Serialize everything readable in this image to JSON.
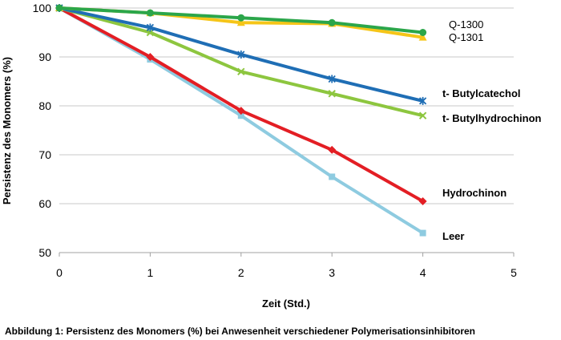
{
  "chart_data": {
    "type": "line",
    "xlabel": "Zeit (Std.)",
    "ylabel": "Persistenz des Monomers (%)",
    "caption": "Abbildung 1:  Persistenz des Monomers (%) bei Anwesenheit verschiedener Polymerisationsinhibitoren",
    "xlim": [
      0,
      5
    ],
    "ylim": [
      50,
      100
    ],
    "xticks": [
      "0",
      "1",
      "2",
      "3",
      "4",
      "5"
    ],
    "yticks": [
      "50",
      "60",
      "70",
      "80",
      "90",
      "100"
    ],
    "x": [
      0,
      1,
      2,
      3,
      4
    ],
    "grid": "horizontal",
    "legend": "inline-right",
    "series": [
      {
        "name": "Q-1301",
        "color": "#F5C518",
        "marker": "triangle",
        "values": [
          100,
          99,
          97,
          96.8,
          94
        ]
      },
      {
        "name": "Q-1300",
        "color": "#2BA64A",
        "marker": "circle",
        "values": [
          100,
          99,
          98,
          97,
          95
        ]
      },
      {
        "name": "t- Butylcatechol",
        "color": "#1F6EB5",
        "marker": "star",
        "values": [
          100,
          96,
          90.5,
          85.5,
          81
        ]
      },
      {
        "name": "t- Butylhydrochinon",
        "color": "#8DC63F",
        "marker": "x",
        "values": [
          100,
          95,
          87,
          82.5,
          78
        ]
      },
      {
        "name": "Hydrochinon",
        "color": "#E31E24",
        "marker": "diamond",
        "values": [
          100,
          90,
          79,
          71,
          60.5
        ]
      },
      {
        "name": "Leer",
        "color": "#8ECBE0",
        "marker": "square",
        "values": [
          100,
          89.5,
          78,
          65.5,
          54
        ]
      }
    ]
  }
}
